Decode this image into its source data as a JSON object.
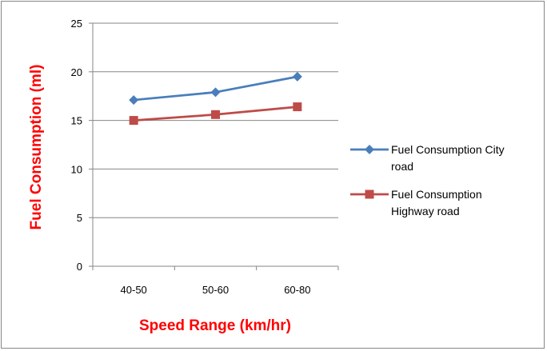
{
  "chart_data": {
    "type": "line",
    "categories": [
      "40-50",
      "50-60",
      "60-80"
    ],
    "series": [
      {
        "name": "Fuel Consumption City road",
        "legend_lines": [
          "Fuel Consumption City",
          "road"
        ],
        "values": [
          17.1,
          17.9,
          19.5
        ],
        "color": "#4a7ebb",
        "marker": "diamond"
      },
      {
        "name": "Fuel Consumption Highway road",
        "legend_lines": [
          "Fuel Consumption",
          "Highway road"
        ],
        "values": [
          15.0,
          15.6,
          16.4
        ],
        "color": "#be4b48",
        "marker": "square"
      }
    ],
    "xlabel": "Speed Range (km/hr)",
    "ylabel": "Fuel Consumption  (ml)",
    "ylim": [
      0,
      25
    ],
    "yticks": [
      0,
      5,
      10,
      15,
      20,
      25
    ],
    "grid": true,
    "legend_position": "right"
  }
}
